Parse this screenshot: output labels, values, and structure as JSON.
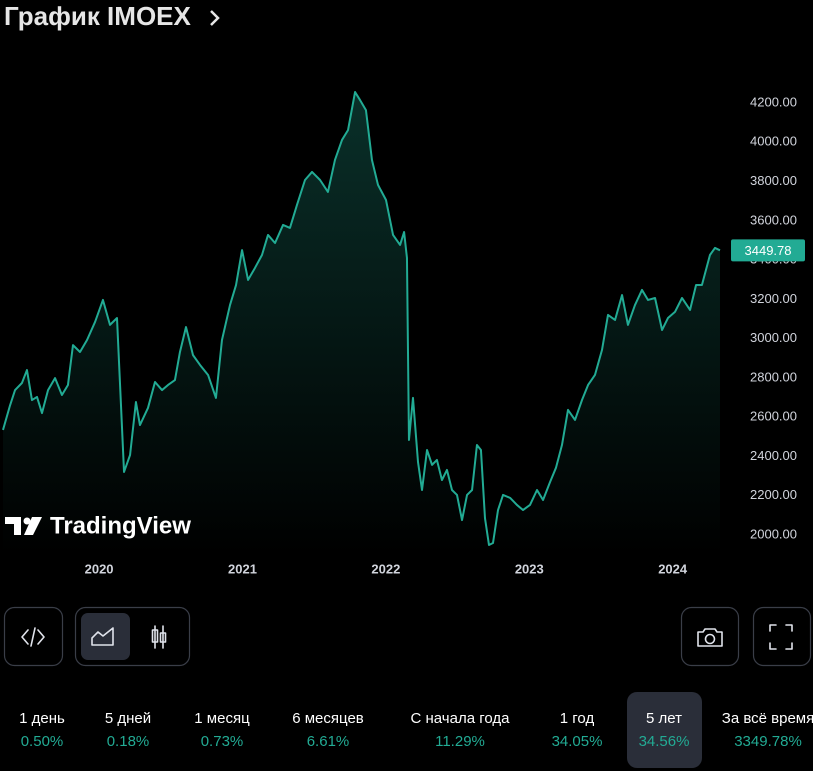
{
  "chart_data": {
    "type": "area",
    "title": "График IMOEX",
    "watermark": "TradingView",
    "color": "#22ab94",
    "x": [
      2019.33,
      2019.379,
      2019.414,
      2019.462,
      2019.497,
      2019.532,
      2019.567,
      2019.602,
      2019.644,
      2019.693,
      2019.741,
      2019.783,
      2019.818,
      2019.867,
      2019.916,
      2019.972,
      2020.027,
      2020.076,
      2020.125,
      2020.174,
      2020.216,
      2020.257,
      2020.285,
      2020.341,
      2020.39,
      2020.439,
      2020.481,
      2020.529,
      2020.564,
      2020.606,
      2020.655,
      2020.704,
      2020.76,
      2020.815,
      2020.857,
      2020.913,
      2020.955,
      2020.997,
      2021.039,
      2021.087,
      2021.136,
      2021.178,
      2021.227,
      2021.283,
      2021.331,
      2021.38,
      2021.436,
      2021.485,
      2021.541,
      2021.596,
      2021.645,
      2021.694,
      2021.736,
      2021.785,
      2021.82,
      2021.861,
      2021.903,
      2021.945,
      2022.001,
      2022.05,
      2022.099,
      2022.127,
      2022.147,
      2022.161,
      2022.189,
      2022.224,
      2022.252,
      2022.287,
      2022.322,
      2022.356,
      2022.391,
      2022.426,
      2022.461,
      2022.496,
      2022.531,
      2022.566,
      2022.601,
      2022.635,
      2022.663,
      2022.691,
      2022.719,
      2022.747,
      2022.782,
      2022.817,
      2022.866,
      2022.914,
      2022.956,
      2023.005,
      2023.054,
      2023.096,
      2023.145,
      2023.186,
      2023.228,
      2023.27,
      2023.319,
      2023.368,
      2023.41,
      2023.458,
      2023.507,
      2023.549,
      2023.598,
      2023.647,
      2023.688,
      2023.737,
      2023.786,
      2023.828,
      2023.877,
      2023.926,
      2023.967,
      2024.016,
      2024.065,
      2024.121,
      2024.163,
      2024.204,
      2024.26,
      2024.295,
      2024.33
    ],
    "values": [
      2535,
      2660,
      2738,
      2774,
      2840,
      2687,
      2703,
      2621,
      2738,
      2799,
      2713,
      2764,
      2967,
      2932,
      2993,
      3085,
      3197,
      3070,
      3105,
      2321,
      2407,
      2677,
      2560,
      2647,
      2779,
      2738,
      2764,
      2789,
      2932,
      3059,
      2916,
      2866,
      2815,
      2698,
      2993,
      3171,
      3273,
      3451,
      3299,
      3360,
      3426,
      3528,
      3487,
      3579,
      3564,
      3681,
      3808,
      3849,
      3808,
      3747,
      3910,
      4012,
      4062,
      4256,
      4215,
      4164,
      3910,
      3783,
      3706,
      3528,
      3477,
      3543,
      3411,
      2484,
      2698,
      2372,
      2229,
      2433,
      2357,
      2382,
      2280,
      2331,
      2229,
      2204,
      2076,
      2204,
      2229,
      2458,
      2433,
      2086,
      1949,
      1959,
      2127,
      2204,
      2189,
      2153,
      2127,
      2153,
      2229,
      2178,
      2270,
      2342,
      2458,
      2637,
      2586,
      2688,
      2764,
      2815,
      2942,
      3121,
      3095,
      3222,
      3070,
      3171,
      3248,
      3197,
      3207,
      3044,
      3105,
      3136,
      3207,
      3146,
      3273,
      3273,
      3426,
      3462,
      3449.78
    ],
    "price_label": {
      "value": 3449.78,
      "label": "3449.78"
    },
    "xlim": [
      2019.33,
      2024.33
    ],
    "xticks": [
      2020,
      2021,
      2022,
      2023,
      2024
    ],
    "ylim": [
      1900,
      4300
    ],
    "yticks": [
      {
        "value": 2000,
        "label": "2000.00"
      },
      {
        "value": 2200,
        "label": "2200.00"
      },
      {
        "value": 2400,
        "label": "2400.00"
      },
      {
        "value": 2600,
        "label": "2600.00"
      },
      {
        "value": 2800,
        "label": "2800.00"
      },
      {
        "value": 3000,
        "label": "3000.00"
      },
      {
        "value": 3200,
        "label": "3200.00"
      },
      {
        "value": 3400,
        "label": "3400.00"
      },
      {
        "value": 3600,
        "label": "3600.00"
      },
      {
        "value": 3800,
        "label": "3800.00"
      },
      {
        "value": 4000,
        "label": "4000.00"
      },
      {
        "value": 4200,
        "label": "4200.00"
      }
    ],
    "grid": false
  },
  "periods": [
    {
      "label": "1 день",
      "change": "0.50%"
    },
    {
      "label": "5 дней",
      "change": "0.18%"
    },
    {
      "label": "1 месяц",
      "change": "0.73%"
    },
    {
      "label": "6 месяцев",
      "change": "6.61%"
    },
    {
      "label": "С начала года",
      "change": "11.29%"
    },
    {
      "label": "1 год",
      "change": "34.05%"
    },
    {
      "label": "5 лет",
      "change": "34.56%"
    },
    {
      "label": "За всё время",
      "change": "3349.78%"
    }
  ],
  "active_period_index": 6
}
